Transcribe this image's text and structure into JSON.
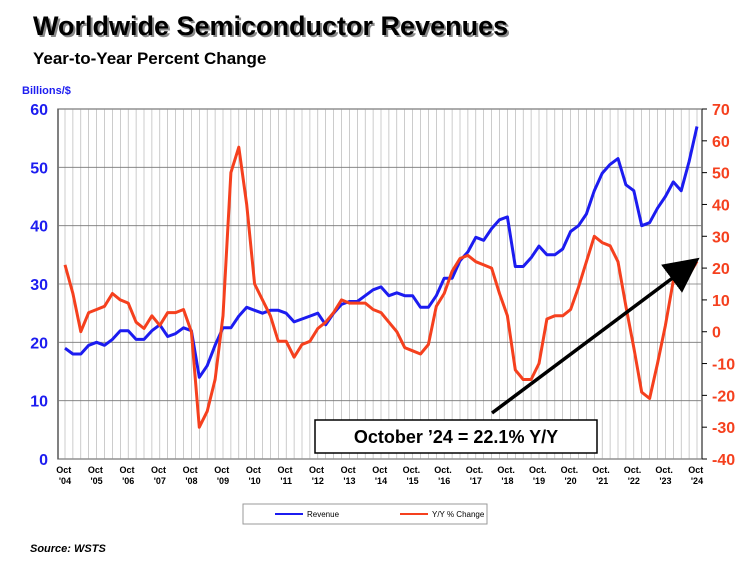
{
  "chart_data": {
    "type": "line",
    "title": "Worldwide Semiconductor Revenues",
    "subtitle": "Year-to-Year Percent Change",
    "y_label": "Billions/$",
    "annotation": "October ’24 = 22.1% Y/Y",
    "source": "Source: WSTS",
    "categories": [
      "Oct '04",
      null,
      null,
      null,
      "Oct '05",
      null,
      null,
      null,
      "Oct '06",
      null,
      null,
      null,
      "Oct '07",
      null,
      null,
      null,
      "Oct '08",
      null,
      null,
      null,
      "Oct '09",
      null,
      null,
      null,
      "Oct '10",
      null,
      null,
      null,
      "Oct '11",
      null,
      null,
      null,
      "Oct '12",
      null,
      null,
      null,
      "Oct '13",
      null,
      null,
      null,
      "Oct '14",
      null,
      null,
      null,
      "Oct. '15",
      null,
      null,
      null,
      "Oct. '16",
      null,
      null,
      null,
      "Oct. '17",
      null,
      null,
      null,
      "Oct. '18",
      null,
      null,
      null,
      "Oct. '19",
      null,
      null,
      null,
      "Oct. '20",
      null,
      null,
      null,
      "Oct. '21",
      null,
      null,
      null,
      "Oct. '22",
      null,
      null,
      null,
      "Oct. '23",
      null,
      null,
      null,
      "Oct '24"
    ],
    "series": [
      {
        "name": "Revenue",
        "color": "#1c1cf0",
        "values": [
          19,
          18,
          18,
          19.5,
          20,
          19.5,
          20.5,
          22,
          22,
          20.5,
          20.5,
          22,
          23,
          21,
          21.5,
          22.5,
          22,
          14,
          16,
          19.5,
          22.5,
          22.5,
          24.5,
          26,
          25.5,
          25,
          25.5,
          25.5,
          25,
          23.5,
          24,
          24.5,
          25,
          23,
          25,
          26.5,
          27,
          27,
          28,
          29,
          29.5,
          28,
          28.5,
          28,
          28,
          26,
          26,
          28,
          31,
          31,
          34,
          35.5,
          38,
          37.5,
          39.5,
          41,
          41.5,
          33,
          33,
          34.5,
          36.5,
          35,
          35,
          36,
          39,
          40,
          42,
          46,
          49,
          50.5,
          51.5,
          47,
          46,
          40,
          40.5,
          43,
          45,
          47.5,
          46,
          51,
          57
        ]
      },
      {
        "name": "Y/Y % Change",
        "color": "#f5401e",
        "axis": "y2",
        "values": [
          21,
          12,
          0,
          6,
          7,
          8,
          12,
          10,
          9,
          3,
          1,
          5,
          2,
          6,
          6,
          7,
          0,
          -30,
          -25,
          -15,
          5,
          50,
          58,
          40,
          15,
          10,
          5,
          -3,
          -3,
          -8,
          -4,
          -3,
          1,
          3,
          6,
          10,
          9,
          9,
          9,
          7,
          6,
          3,
          0,
          -5,
          -6,
          -7,
          -4,
          8,
          12,
          19,
          23,
          24,
          22,
          21,
          20,
          12,
          5,
          -12,
          -15,
          -15,
          -10,
          4,
          5,
          5,
          7,
          14,
          22,
          30,
          28,
          27,
          22,
          8,
          -5,
          -19,
          -21,
          -10,
          2,
          16,
          15,
          18,
          22.1
        ]
      }
    ],
    "ylim": [
      0,
      60
    ],
    "yticks": [
      0,
      10,
      20,
      30,
      40,
      50,
      60
    ],
    "y2lim": [
      -40,
      70
    ],
    "y2ticks": [
      -40,
      -30,
      -20,
      -10,
      0,
      10,
      20,
      30,
      40,
      50,
      60,
      70
    ],
    "grid": true,
    "legend": "bottom"
  }
}
